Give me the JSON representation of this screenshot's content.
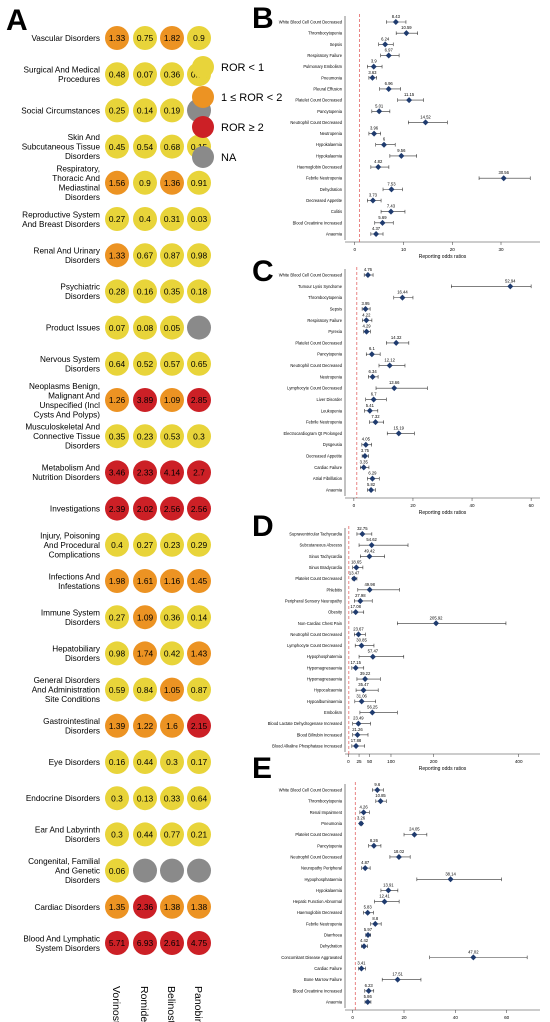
{
  "panels": {
    "a": "A",
    "b": "B",
    "c": "C",
    "d": "D",
    "e": "E"
  },
  "colors": {
    "yellow": "#e8d43a",
    "orange": "#ec9323",
    "red": "#cc2026",
    "grey": "#8a8a8a",
    "diamond": "#1f3b6e",
    "refline": "#e05050"
  },
  "chart_data": [
    {
      "type": "heatmap",
      "panel": "A",
      "columns": [
        "Vorinostat",
        "Romidepsin",
        "Belinostat",
        "Panobinostat"
      ],
      "rows": [
        {
          "label": "Vascular Disorders",
          "values": [
            "1.33",
            "0.75",
            "1.82",
            "0.9"
          ]
        },
        {
          "label": "Surgical And Medical Procedures",
          "values": [
            "0.48",
            "0.07",
            "0.36",
            "0.38"
          ]
        },
        {
          "label": "Social Circumstances",
          "values": [
            "0.25",
            "0.14",
            "0.19",
            null
          ]
        },
        {
          "label": "Skin And Subcutaneous Tissue Disorders",
          "values": [
            "0.45",
            "0.54",
            "0.68",
            "0.15"
          ]
        },
        {
          "label": "Respiratory, Thoracic And Mediastinal Disorders",
          "values": [
            "1.56",
            "0.9",
            "1.36",
            "0.91"
          ]
        },
        {
          "label": "Reproductive System And Breast Disorders",
          "values": [
            "0.27",
            "0.4",
            "0.31",
            "0.03"
          ]
        },
        {
          "label": "Renal And Urinary Disorders",
          "values": [
            "1.33",
            "0.67",
            "0.87",
            "0.98"
          ]
        },
        {
          "label": "Psychiatric Disorders",
          "values": [
            "0.28",
            "0.16",
            "0.35",
            "0.18"
          ]
        },
        {
          "label": "Product Issues",
          "values": [
            "0.07",
            "0.08",
            "0.05",
            null
          ]
        },
        {
          "label": "Nervous System Disorders",
          "values": [
            "0.64",
            "0.52",
            "0.57",
            "0.65"
          ]
        },
        {
          "label": "Neoplasms Benign, Malignant And Unspecified (Incl Cysts And Polyps)",
          "values": [
            "1.26",
            "3.89",
            "1.09",
            "2.85"
          ]
        },
        {
          "label": "Musculoskeletal And Connective Tissue Disorders",
          "values": [
            "0.35",
            "0.23",
            "0.53",
            "0.3"
          ]
        },
        {
          "label": "Metabolism And Nutrition Disorders",
          "values": [
            "3.46",
            "2.33",
            "4.14",
            "2.7"
          ]
        },
        {
          "label": "Investigations",
          "values": [
            "2.39",
            "2.02",
            "2.56",
            "2.56"
          ]
        },
        {
          "label": "Injury, Poisoning And Procedural Complications",
          "values": [
            "0.4",
            "0.27",
            "0.23",
            "0.29"
          ]
        },
        {
          "label": "Infections And Infestations",
          "values": [
            "1.98",
            "1.61",
            "1.16",
            "1.45"
          ]
        },
        {
          "label": "Immune System Disorders",
          "values": [
            "0.27",
            "1.09",
            "0.36",
            "0.14"
          ]
        },
        {
          "label": "Hepatobiliary Disorders",
          "values": [
            "0.98",
            "1.74",
            "0.42",
            "1.43"
          ]
        },
        {
          "label": "General Disorders And Administration Site Conditions",
          "values": [
            "0.59",
            "0.84",
            "1.05",
            "0.87"
          ]
        },
        {
          "label": "Gastrointestinal Disorders",
          "values": [
            "1.39",
            "1.22",
            "1.6",
            "2.15"
          ]
        },
        {
          "label": "Eye Disorders",
          "values": [
            "0.16",
            "0.44",
            "0.3",
            "0.17"
          ]
        },
        {
          "label": "Endocrine Disorders",
          "values": [
            "0.3",
            "0.13",
            "0.33",
            "0.64"
          ]
        },
        {
          "label": "Ear And Labyrinth Disorders",
          "values": [
            "0.3",
            "0.44",
            "0.77",
            "0.21"
          ]
        },
        {
          "label": "Congenital, Familial And Genetic Disorders",
          "values": [
            "0.06",
            null,
            null,
            null
          ]
        },
        {
          "label": "Cardiac Disorders",
          "values": [
            "1.35",
            "2.36",
            "1.38",
            "1.38"
          ]
        },
        {
          "label": "Blood And Lymphatic System Disorders",
          "values": [
            "5.71",
            "6.93",
            "2.61",
            "4.75"
          ]
        }
      ],
      "legend": [
        "ROR < 1",
        "1 ≤ ROR < 2",
        "ROR ≥ 2",
        "NA"
      ]
    },
    {
      "type": "scatter",
      "panel": "B",
      "xlabel": "Reporting odds ratios",
      "xticks": [
        0,
        10,
        20,
        30
      ],
      "xlim": [
        -2,
        38
      ],
      "items": [
        {
          "label": "White Blood Cell Count Decreased",
          "value": 8.43,
          "lo": 6.5,
          "hi": 10.5
        },
        {
          "label": "Thrombocytopenia",
          "value": 10.59,
          "lo": 8.5,
          "hi": 12.9
        },
        {
          "label": "Sepsis",
          "value": 6.24,
          "lo": 4.9,
          "hi": 7.9
        },
        {
          "label": "Respiratory Failure",
          "value": 6.97,
          "lo": 5.3,
          "hi": 9.1
        },
        {
          "label": "Pulmonary Embolism",
          "value": 3.9,
          "lo": 2.6,
          "hi": 5.6
        },
        {
          "label": "Pneumonia",
          "value": 3.63,
          "lo": 2.9,
          "hi": 4.5
        },
        {
          "label": "Pleural Effusion",
          "value": 6.96,
          "lo": 5.1,
          "hi": 9.4
        },
        {
          "label": "Platelet Count Decreased",
          "value": 11.15,
          "lo": 8.8,
          "hi": 14.1
        },
        {
          "label": "Pancytopenia",
          "value": 5.01,
          "lo": 3.5,
          "hi": 7.2
        },
        {
          "label": "Neutrophil Count Decreased",
          "value": 14.52,
          "lo": 11.0,
          "hi": 19.0
        },
        {
          "label": "Neutropenia",
          "value": 3.96,
          "lo": 2.9,
          "hi": 5.3
        },
        {
          "label": "Hypokalaemia",
          "value": 6,
          "lo": 4.3,
          "hi": 8.3
        },
        {
          "label": "Hypokalaemia",
          "value": 9.56,
          "lo": 7.2,
          "hi": 12.7
        },
        {
          "label": "Haemoglobin Decreased",
          "value": 4.82,
          "lo": 3.3,
          "hi": 7.0
        },
        {
          "label": "Febrile Neutropenia",
          "value": 30.56,
          "lo": 25.5,
          "hi": 36.0
        },
        {
          "label": "Dehydration",
          "value": 7.53,
          "lo": 5.8,
          "hi": 9.8
        },
        {
          "label": "Decreased Appetite",
          "value": 3.73,
          "lo": 2.6,
          "hi": 5.4
        },
        {
          "label": "Colitis",
          "value": 7.43,
          "lo": 5.4,
          "hi": 10.3
        },
        {
          "label": "Blood Creatinine Increased",
          "value": 5.69,
          "lo": 4.1,
          "hi": 7.9
        },
        {
          "label": "Anaemia",
          "value": 4.37,
          "lo": 3.3,
          "hi": 5.8
        }
      ]
    },
    {
      "type": "scatter",
      "panel": "C",
      "xlabel": "Reporting odds ratios",
      "xticks": [
        0,
        20,
        40,
        60
      ],
      "xlim": [
        -3,
        63
      ],
      "items": [
        {
          "label": "White Blood Cell Count Decreased",
          "value": 4.76,
          "lo": 3.5,
          "hi": 6.5
        },
        {
          "label": "Tumour Lysis Syndrome",
          "value": 52.94,
          "lo": 33.0,
          "hi": 60.0
        },
        {
          "label": "Thrombocytopenia",
          "value": 16.44,
          "lo": 13.5,
          "hi": 20.0
        },
        {
          "label": "Sepsis",
          "value": 3.95,
          "lo": 2.8,
          "hi": 5.5
        },
        {
          "label": "Respiratory Failure",
          "value": 4.22,
          "lo": 2.9,
          "hi": 6.1
        },
        {
          "label": "Pyrexia",
          "value": 4.29,
          "lo": 3.3,
          "hi": 5.6
        },
        {
          "label": "Platelet Count Decreased",
          "value": 14.32,
          "lo": 11.0,
          "hi": 18.6
        },
        {
          "label": "Pancytopenia",
          "value": 6.1,
          "lo": 4.2,
          "hi": 8.9
        },
        {
          "label": "Neutrophil Count Decreased",
          "value": 12.12,
          "lo": 8.5,
          "hi": 17.3
        },
        {
          "label": "Neutropenia",
          "value": 6.34,
          "lo": 4.9,
          "hi": 8.2
        },
        {
          "label": "Lymphocyte Count Decreased",
          "value": 13.66,
          "lo": 7.5,
          "hi": 24.9
        },
        {
          "label": "Liver Disorder",
          "value": 6.7,
          "lo": 4.0,
          "hi": 11.0
        },
        {
          "label": "Leukopenia",
          "value": 5.41,
          "lo": 3.6,
          "hi": 8.1
        },
        {
          "label": "Febrile Neutropenia",
          "value": 7.32,
          "lo": 5.3,
          "hi": 10.1
        },
        {
          "label": "Electrocardiogram Qt Prolonged",
          "value": 15.19,
          "lo": 11.3,
          "hi": 20.5
        },
        {
          "label": "Dysgeusia",
          "value": 4.05,
          "lo": 2.7,
          "hi": 6.0
        },
        {
          "label": "Decreased Appetite",
          "value": 3.75,
          "lo": 2.8,
          "hi": 5.0
        },
        {
          "label": "Cardiac Failure",
          "value": 3.35,
          "lo": 2.2,
          "hi": 5.1
        },
        {
          "label": "Atrial Fibrillation",
          "value": 6.29,
          "lo": 4.6,
          "hi": 8.6
        },
        {
          "label": "Anaemia",
          "value": 5.82,
          "lo": 4.6,
          "hi": 7.3
        }
      ]
    },
    {
      "type": "scatter",
      "panel": "D",
      "xlabel": "Reporting odds ratios",
      "xticks": [
        0,
        25,
        50,
        100,
        200,
        400
      ],
      "xlim": [
        -8,
        450
      ],
      "items": [
        {
          "label": "Supraventricular Tachycardia",
          "value": 32.75,
          "lo": 20,
          "hi": 55
        },
        {
          "label": "Subcutaneous Abscess",
          "value": 54.62,
          "lo": 25,
          "hi": 140
        },
        {
          "label": "Sinus Tachycardia",
          "value": 49.42,
          "lo": 28,
          "hi": 85
        },
        {
          "label": "Sinus Bradycardia",
          "value": 18.65,
          "lo": 10,
          "hi": 34
        },
        {
          "label": "Platelet Count Decreased",
          "value": 13.47,
          "lo": 9,
          "hi": 20
        },
        {
          "label": "Phlebitis",
          "value": 49.98,
          "lo": 22,
          "hi": 120
        },
        {
          "label": "Peripheral Sensory Neuropathy",
          "value": 27.98,
          "lo": 14,
          "hi": 56
        },
        {
          "label": "Obesity",
          "value": 17.08,
          "lo": 8,
          "hi": 36
        },
        {
          "label": "Non-Cardiac Chest Pain",
          "value": 205.92,
          "lo": 115,
          "hi": 370
        },
        {
          "label": "Neutrophil Count Decreased",
          "value": 23.67,
          "lo": 14,
          "hi": 40
        },
        {
          "label": "Lymphocyte Count Decreased",
          "value": 30.85,
          "lo": 16,
          "hi": 60
        },
        {
          "label": "Hypophosphatemia",
          "value": 57.47,
          "lo": 25,
          "hi": 130
        },
        {
          "label": "Hypomagnesaemia",
          "value": 17.15,
          "lo": 8,
          "hi": 36
        },
        {
          "label": "Hypomagnesaemia",
          "value": 39.22,
          "lo": 20,
          "hi": 75
        },
        {
          "label": "Hypocalcaemia",
          "value": 35.47,
          "lo": 18,
          "hi": 70
        },
        {
          "label": "Hypoalbuminaemia",
          "value": 31.06,
          "lo": 15,
          "hi": 64
        },
        {
          "label": "Embolism",
          "value": 56.25,
          "lo": 27,
          "hi": 115
        },
        {
          "label": "Blood Lactate Dehydrogenase Increased",
          "value": 23.49,
          "lo": 10,
          "hi": 52
        },
        {
          "label": "Blood Bilirubin Increased",
          "value": 21.26,
          "lo": 10,
          "hi": 46
        },
        {
          "label": "Blood Alkaline Phosphatase Increased",
          "value": 17.88,
          "lo": 8,
          "hi": 38
        }
      ]
    },
    {
      "type": "scatter",
      "panel": "E",
      "xlabel": "Reporting odds ratios",
      "xticks": [
        0,
        20,
        40,
        60
      ],
      "xlim": [
        -3,
        73
      ],
      "items": [
        {
          "label": "White Blood Cell Count Decreased",
          "value": 9.6,
          "lo": 7.7,
          "hi": 12.0
        },
        {
          "label": "Thrombocytopenia",
          "value": 10.85,
          "lo": 9.0,
          "hi": 13.1
        },
        {
          "label": "Renal Impairment",
          "value": 4.26,
          "lo": 2.8,
          "hi": 6.5
        },
        {
          "label": "Pneumonia",
          "value": 3.26,
          "lo": 2.7,
          "hi": 3.9
        },
        {
          "label": "Platelet Count Decreased",
          "value": 24.05,
          "lo": 20.0,
          "hi": 28.9
        },
        {
          "label": "Pancytopenia",
          "value": 8.26,
          "lo": 6.2,
          "hi": 11.0
        },
        {
          "label": "Neutrophil Count Decreased",
          "value": 18.02,
          "lo": 14.5,
          "hi": 22.4
        },
        {
          "label": "Neuropathy Peripheral",
          "value": 4.87,
          "lo": 3.5,
          "hi": 6.8
        },
        {
          "label": "Hypophosphataemia",
          "value": 38.14,
          "lo": 25.0,
          "hi": 58.0
        },
        {
          "label": "Hypokalaemia",
          "value": 13.91,
          "lo": 11.0,
          "hi": 17.6
        },
        {
          "label": "Hepatic Function Abnormal",
          "value": 12.41,
          "lo": 8.5,
          "hi": 18.1
        },
        {
          "label": "Haemoglobin Decreased",
          "value": 5.83,
          "lo": 4.2,
          "hi": 8.1
        },
        {
          "label": "Febrile Neutropenia",
          "value": 8.8,
          "lo": 7.0,
          "hi": 11.1
        },
        {
          "label": "Diarrhoea",
          "value": 5.97,
          "lo": 5.1,
          "hi": 7.0
        },
        {
          "label": "Dehydration",
          "value": 4.42,
          "lo": 3.4,
          "hi": 5.8
        },
        {
          "label": "Concomitant Disease Aggravated",
          "value": 47.02,
          "lo": 30.0,
          "hi": 68.0
        },
        {
          "label": "Cardiac Failure",
          "value": 3.41,
          "lo": 2.3,
          "hi": 5.0
        },
        {
          "label": "Bone Marrow Failure",
          "value": 17.51,
          "lo": 11.5,
          "hi": 26.6
        },
        {
          "label": "Blood Creatinine Increased",
          "value": 6.23,
          "lo": 4.7,
          "hi": 8.2
        },
        {
          "label": "Anaemia",
          "value": 5.86,
          "lo": 4.8,
          "hi": 7.1
        }
      ]
    }
  ]
}
